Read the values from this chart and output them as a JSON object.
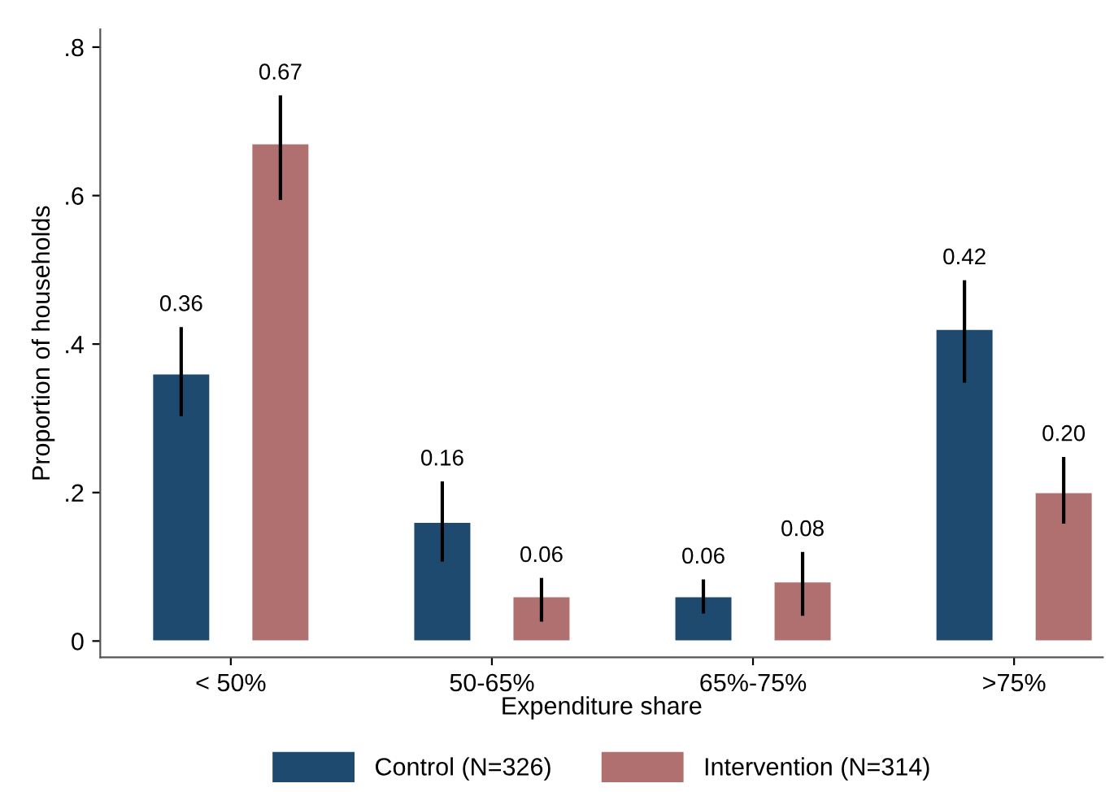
{
  "chart_data": {
    "type": "bar",
    "xlabel": "Expenditure share",
    "ylabel": "Proportion of households",
    "categories": [
      "< 50%",
      "50-65%",
      "65%-75%",
      ">75%"
    ],
    "series": [
      {
        "name": "Control (N=326)",
        "color": "#1f4a70",
        "values": [
          0.36,
          0.16,
          0.06,
          0.42
        ],
        "value_labels": [
          "0.36",
          "0.16",
          "0.06",
          "0.42"
        ],
        "errors": [
          [
            0.303,
            0.423
          ],
          [
            0.107,
            0.215
          ],
          [
            0.037,
            0.083
          ],
          [
            0.348,
            0.486
          ]
        ]
      },
      {
        "name": "Intervention (N=314)",
        "color": "#b07070",
        "values": [
          0.67,
          0.06,
          0.08,
          0.2
        ],
        "value_labels": [
          "0.67",
          "0.06",
          "0.08",
          "0.20"
        ],
        "errors": [
          [
            0.594,
            0.735
          ],
          [
            0.026,
            0.085
          ],
          [
            0.034,
            0.12
          ],
          [
            0.158,
            0.248
          ]
        ]
      }
    ],
    "ylim": [
      -0.022,
      0.824
    ],
    "yticks": [
      0,
      {
        "value": 0.2,
        "label": ".2"
      },
      {
        "value": 0.4,
        "label": ".4"
      },
      {
        "value": 0.6,
        "label": ".6"
      },
      {
        "value": 0.8,
        "label": ".8"
      }
    ],
    "grid": false,
    "legend": "bottom"
  }
}
